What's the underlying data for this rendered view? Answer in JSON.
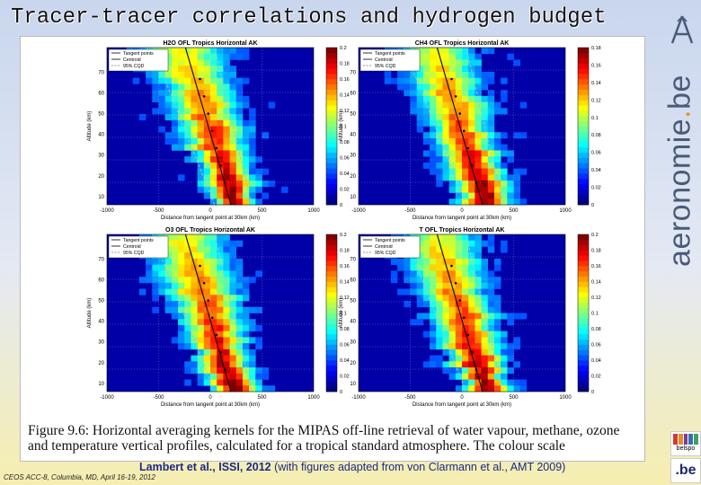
{
  "slide": {
    "title": "Tracer-tracer correlations and hydrogen budget",
    "credit_bold": "Lambert et al., ISSI, 2012",
    "credit_rest": " (with figures adapted from von Clarmann et al., AMT 2009)",
    "footer": "CEOS ACC-8, Columbia, MD, April 16-19, 2012",
    "caption": "Figure 9.6: Horizontal averaging kernels for the MIPAS off-line retrieval of water vapour, methane, ozone and temperature vertical profiles, calculated for a tropical standard atmosphere. The colour scale"
  },
  "logos": {
    "brand": "aeronomie",
    "brand_dot": ".",
    "brand_tld": "be",
    "belspo": "belspo",
    "be": ".be",
    "colors": {
      "brand": "#4a5b78",
      "dot": "#e38d1e"
    }
  },
  "panels": [
    {
      "title": "H2O OFL Tropics Horizontal AK",
      "xlabel": "Distance from tangent point at 30km (km)",
      "ylabel": "Altitude (km)",
      "xticks": [
        "-1000",
        "-500",
        "0",
        "500",
        "1000"
      ],
      "yticks": [
        "10",
        "20",
        "30",
        "40",
        "50",
        "60",
        "70"
      ],
      "cbticks": [
        "0",
        "0.02",
        "0.04",
        "0.06",
        "0.08",
        "0.1",
        "0.12",
        "0.14",
        "0.16",
        "0.18",
        "0.2"
      ],
      "legend": [
        "Tangent points",
        "Centroid",
        "95% CQD"
      ],
      "seed": 3
    },
    {
      "title": "CH4 OFL Tropics Horizontal AK",
      "xlabel": "Distance from tangent point at 30km (km)",
      "ylabel": "Altitude (km)",
      "xticks": [
        "-1000",
        "-500",
        "0",
        "500",
        "1000"
      ],
      "yticks": [
        "10",
        "20",
        "30",
        "40",
        "50",
        "60",
        "70"
      ],
      "cbticks": [
        "0",
        "0.02",
        "0.04",
        "0.06",
        "0.08",
        "0.1",
        "0.12",
        "0.14",
        "0.16",
        "0.18"
      ],
      "legend": [
        "Tangent points",
        "Centroid",
        "95% CQD"
      ],
      "seed": 7
    },
    {
      "title": "O3 OFL Tropics Horizontal AK",
      "xlabel": "Distance from tangent point at 30km (km)",
      "ylabel": "Altitude (km)",
      "xticks": [
        "-1000",
        "-500",
        "0",
        "500",
        "1000"
      ],
      "yticks": [
        "10",
        "20",
        "30",
        "40",
        "50",
        "60",
        "70"
      ],
      "cbticks": [
        "0",
        "0.02",
        "0.04",
        "0.06",
        "0.08",
        "0.1",
        "0.12",
        "0.14",
        "0.16",
        "0.18",
        "0.2"
      ],
      "legend": [
        "Tangent points",
        "Centroid",
        "95% CQD"
      ],
      "seed": 11
    },
    {
      "title": "T OFL Tropics Horizontal AK",
      "xlabel": "Distance from tangent point at 30km (km)",
      "ylabel": "Altitude (km)",
      "xticks": [
        "-1000",
        "-500",
        "0",
        "500",
        "1000"
      ],
      "yticks": [
        "10",
        "20",
        "30",
        "40",
        "50",
        "60",
        "70"
      ],
      "cbticks": [
        "0",
        "0.02",
        "0.04",
        "0.06",
        "0.08",
        "0.1",
        "0.12",
        "0.14",
        "0.16",
        "0.18",
        "0.2"
      ],
      "legend": [
        "Tangent points",
        "Centroid",
        "95% CQD"
      ],
      "seed": 17
    }
  ]
}
